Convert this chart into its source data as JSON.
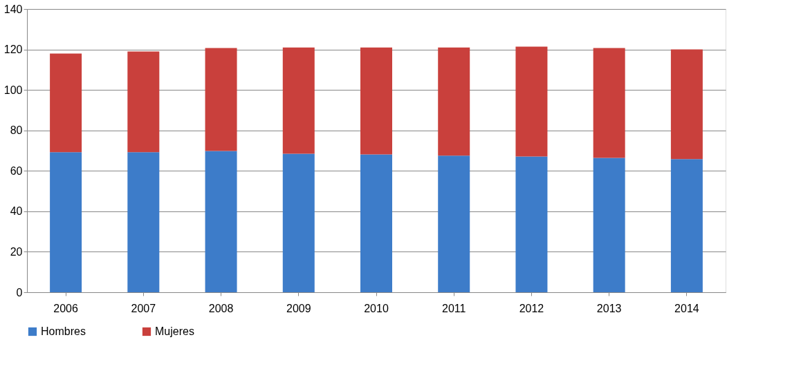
{
  "chart_data": {
    "type": "bar",
    "stacked": true,
    "categories": [
      "2006",
      "2007",
      "2008",
      "2009",
      "2010",
      "2011",
      "2012",
      "2013",
      "2014"
    ],
    "series": [
      {
        "name": "Hombres",
        "color": "#3d7cc9",
        "values": [
          69.2,
          69.2,
          69.8,
          68.5,
          68.1,
          67.5,
          67.1,
          66.4,
          65.8
        ]
      },
      {
        "name": "Mujeres",
        "color": "#c9403c",
        "values": [
          48.8,
          49.8,
          50.9,
          52.5,
          52.9,
          53.5,
          54.3,
          54.3,
          54.2
        ]
      }
    ],
    "ylim": [
      0,
      140
    ],
    "yticks": [
      0,
      20,
      40,
      60,
      80,
      100,
      120,
      140
    ],
    "grid": "y",
    "legend": "bottom"
  }
}
